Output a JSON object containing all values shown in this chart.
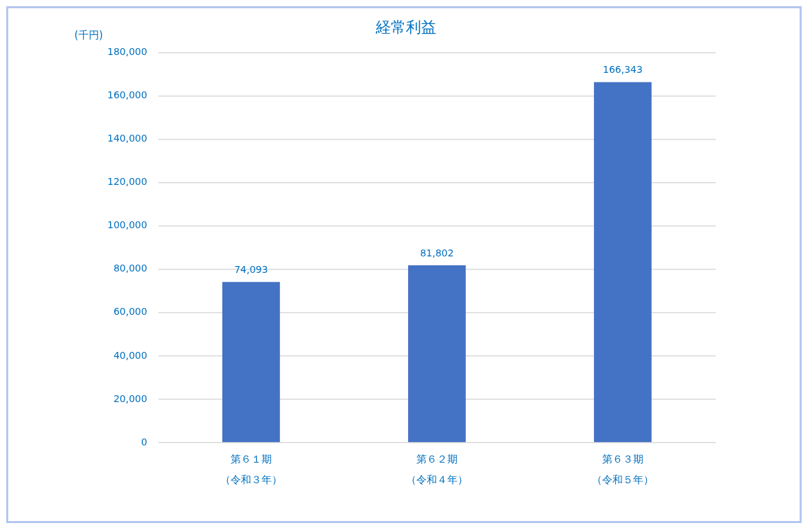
{
  "chart_data": {
    "type": "bar",
    "title": "経常利益",
    "ylabel": "(千円)",
    "categories": [
      "第６１期（令和３年）",
      "第６２期（令和４年）",
      "第６３期（令和５年）"
    ],
    "values": [
      74093,
      81802,
      166343
    ],
    "color": "#4472c4",
    "value_labels": [
      "74,093",
      "81,802",
      "166,343"
    ],
    "ylim": [
      0,
      180000
    ],
    "yticks": [
      {
        "value": 0,
        "label": "0"
      },
      {
        "value": 20000,
        "label": "20,000"
      },
      {
        "value": 40000,
        "label": "40,000"
      },
      {
        "value": 60000,
        "label": "60,000"
      },
      {
        "value": 80000,
        "label": "80,000"
      },
      {
        "value": 100000,
        "label": "100,000"
      },
      {
        "value": 120000,
        "label": "120,000"
      },
      {
        "value": 140000,
        "label": "140,000"
      },
      {
        "value": 160000,
        "label": "160,000"
      },
      {
        "value": 180000,
        "label": "180,000"
      }
    ],
    "grid": "y",
    "legend": false
  }
}
